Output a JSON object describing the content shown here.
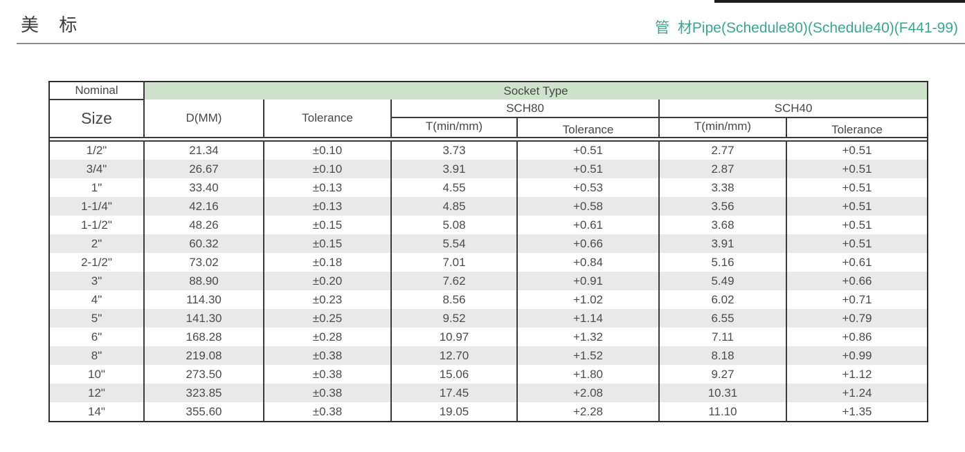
{
  "page": {
    "title_cn": "美 标",
    "title_right": "管 材Pipe(Schedule80)(Schedule40)(F441-99)"
  },
  "colors": {
    "accent_teal": "#3BA68F",
    "banner_green": "#CFE2CB",
    "row_shade": "#E9E9E9",
    "border_dark": "#3a3a3a"
  },
  "table": {
    "header": {
      "nominal": "Nominal",
      "size": "Size",
      "socket_type": "Socket Type",
      "d_mm": "D(MM)",
      "tolerance": "Tolerance",
      "sch80": "SCH80",
      "sch40": "SCH40",
      "t_min": "T(min/mm)",
      "sub_tolerance": "Tolerance"
    },
    "rows": [
      {
        "size": "1/2\"",
        "d": "21.34",
        "tol": "±0.10",
        "sch80_t": "3.73",
        "sch80_tol": "+0.51",
        "sch40_t": "2.77",
        "sch40_tol": "+0.51"
      },
      {
        "size": "3/4\"",
        "d": "26.67",
        "tol": "±0.10",
        "sch80_t": "3.91",
        "sch80_tol": "+0.51",
        "sch40_t": "2.87",
        "sch40_tol": "+0.51"
      },
      {
        "size": "1\"",
        "d": "33.40",
        "tol": "±0.13",
        "sch80_t": "4.55",
        "sch80_tol": "+0.53",
        "sch40_t": "3.38",
        "sch40_tol": "+0.51"
      },
      {
        "size": "1-1/4\"",
        "d": "42.16",
        "tol": "±0.13",
        "sch80_t": "4.85",
        "sch80_tol": "+0.58",
        "sch40_t": "3.56",
        "sch40_tol": "+0.51"
      },
      {
        "size": "1-1/2\"",
        "d": "48.26",
        "tol": "±0.15",
        "sch80_t": "5.08",
        "sch80_tol": "+0.61",
        "sch40_t": "3.68",
        "sch40_tol": "+0.51"
      },
      {
        "size": "2\"",
        "d": "60.32",
        "tol": "±0.15",
        "sch80_t": "5.54",
        "sch80_tol": "+0.66",
        "sch40_t": "3.91",
        "sch40_tol": "+0.51"
      },
      {
        "size": "2-1/2\"",
        "d": "73.02",
        "tol": "±0.18",
        "sch80_t": "7.01",
        "sch80_tol": "+0.84",
        "sch40_t": "5.16",
        "sch40_tol": "+0.61"
      },
      {
        "size": "3\"",
        "d": "88.90",
        "tol": "±0.20",
        "sch80_t": "7.62",
        "sch80_tol": "+0.91",
        "sch40_t": "5.49",
        "sch40_tol": "+0.66"
      },
      {
        "size": "4\"",
        "d": "114.30",
        "tol": "±0.23",
        "sch80_t": "8.56",
        "sch80_tol": "+1.02",
        "sch40_t": "6.02",
        "sch40_tol": "+0.71"
      },
      {
        "size": "5\"",
        "d": "141.30",
        "tol": "±0.25",
        "sch80_t": "9.52",
        "sch80_tol": "+1.14",
        "sch40_t": "6.55",
        "sch40_tol": "+0.79"
      },
      {
        "size": "6\"",
        "d": "168.28",
        "tol": "±0.28",
        "sch80_t": "10.97",
        "sch80_tol": "+1.32",
        "sch40_t": "7.11",
        "sch40_tol": "+0.86"
      },
      {
        "size": "8\"",
        "d": "219.08",
        "tol": "±0.38",
        "sch80_t": "12.70",
        "sch80_tol": "+1.52",
        "sch40_t": "8.18",
        "sch40_tol": "+0.99"
      },
      {
        "size": "10\"",
        "d": "273.50",
        "tol": "±0.38",
        "sch80_t": "15.06",
        "sch80_tol": "+1.80",
        "sch40_t": "9.27",
        "sch40_tol": "+1.12"
      },
      {
        "size": "12\"",
        "d": "323.85",
        "tol": "±0.38",
        "sch80_t": "17.45",
        "sch80_tol": "+2.08",
        "sch40_t": "10.31",
        "sch40_tol": "+1.24"
      },
      {
        "size": "14\"",
        "d": "355.60",
        "tol": "±0.38",
        "sch80_t": "19.05",
        "sch80_tol": "+2.28",
        "sch40_t": "11.10",
        "sch40_tol": "+1.35"
      }
    ]
  }
}
